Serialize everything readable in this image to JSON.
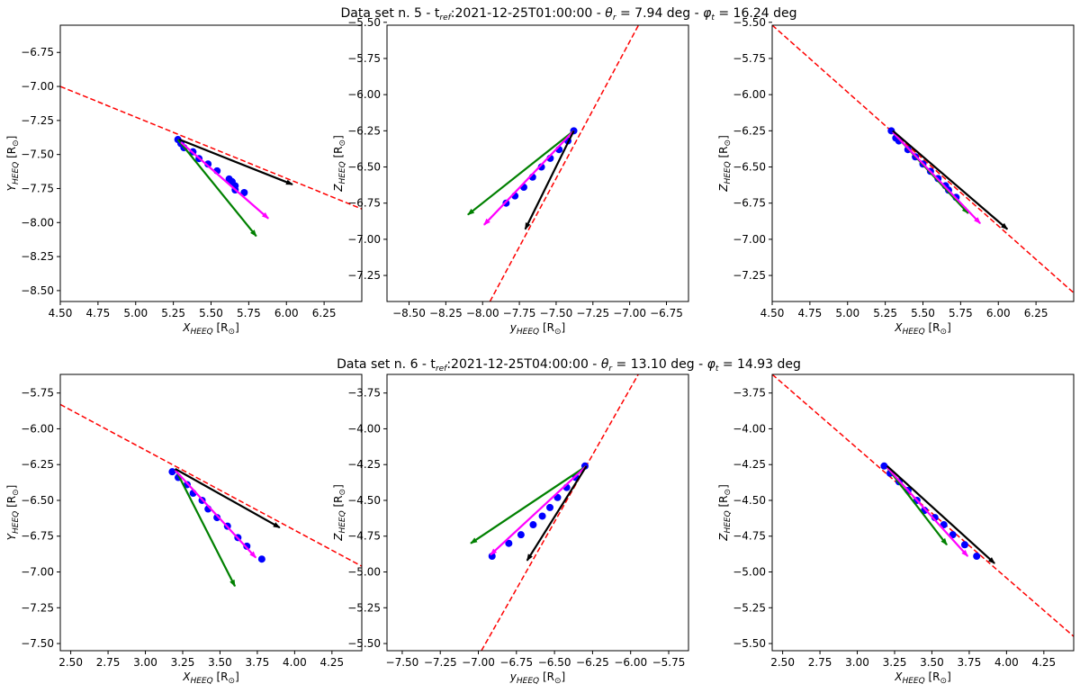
{
  "figure": {
    "row_titles": [
      "Data set n. 5 - t_ref:2021-12-25T01:00:00 - θ_r = 7.94 deg - φ_t = 16.24 deg",
      "Data set n. 6 - t_ref:2021-12-25T04:00:00 - θ_r = 13.10 deg - φ_t = 14.93 deg"
    ],
    "row_title_parts": [
      {
        "prefix": "Data set n. 5 - t",
        "ref": "ref",
        "date": ":2021-12-25T01:00:00 - ",
        "theta_sym": "θ",
        "theta_sub": "r",
        "theta_val": " = 7.94 deg - ",
        "phi_sym": "φ",
        "phi_sub": "t",
        "phi_val": " = 16.24 deg"
      },
      {
        "prefix": "Data set n. 6 - t",
        "ref": "ref",
        "date": ":2021-12-25T04:00:00 - ",
        "theta_sym": "θ",
        "theta_sub": "r",
        "theta_val": " = 13.10 deg - ",
        "phi_sym": "φ",
        "phi_sub": "t",
        "phi_val": " = 14.93 deg"
      }
    ],
    "colors": {
      "fit_line": "#ff0000",
      "points": "#0000ff",
      "arrow_black": "#000000",
      "arrow_magenta": "#ff00ff",
      "arrow_green": "#008000"
    }
  },
  "chart_data": [
    {
      "type": "scatter",
      "row": 0,
      "col": 0,
      "xlabel": {
        "main": "X",
        "sub": "HEEQ",
        "unit": " [R",
        "unit_sub": "⊙",
        "close": "]"
      },
      "ylabel": {
        "main": "Y",
        "sub": "HEEQ",
        "unit": " [R",
        "unit_sub": "⊙",
        "close": "]"
      },
      "xlim": [
        4.5,
        6.5
      ],
      "ylim": [
        -8.58,
        -6.55
      ],
      "xticks": [
        4.5,
        4.75,
        5.0,
        5.25,
        5.5,
        5.75,
        6.0,
        6.25
      ],
      "yticks": [
        -6.75,
        -7.0,
        -7.25,
        -7.5,
        -7.75,
        -8.0,
        -8.25,
        -8.5
      ],
      "fit_line": [
        [
          4.5,
          -7.0
        ],
        [
          6.5,
          -7.9
        ]
      ],
      "points": [
        [
          5.28,
          -7.39
        ],
        [
          5.3,
          -7.42
        ],
        [
          5.32,
          -7.45
        ],
        [
          5.38,
          -7.48
        ],
        [
          5.42,
          -7.53
        ],
        [
          5.48,
          -7.57
        ],
        [
          5.54,
          -7.62
        ],
        [
          5.62,
          -7.68
        ],
        [
          5.64,
          -7.7
        ],
        [
          5.66,
          -7.73
        ],
        [
          5.66,
          -7.76
        ],
        [
          5.72,
          -7.78
        ]
      ],
      "arrows": {
        "black": [
          [
            5.29,
            -7.39
          ],
          [
            6.04,
            -7.72
          ]
        ],
        "magenta": [
          [
            5.3,
            -7.41
          ],
          [
            5.88,
            -7.97
          ]
        ],
        "green": [
          [
            5.28,
            -7.39
          ],
          [
            5.8,
            -8.1
          ]
        ]
      }
    },
    {
      "type": "scatter",
      "row": 0,
      "col": 1,
      "xlabel": {
        "main": "y",
        "sub": "HEEQ",
        "unit": " [R",
        "unit_sub": "⊙",
        "close": "]"
      },
      "ylabel": {
        "main": "Z",
        "sub": "HEEQ",
        "unit": " [R",
        "unit_sub": "⊙",
        "close": "]"
      },
      "xlim": [
        -8.65,
        -6.6
      ],
      "ylim": [
        -7.43,
        -5.52
      ],
      "xticks": [
        -8.5,
        -8.25,
        -8.0,
        -7.75,
        -7.5,
        -7.25,
        -7.0,
        -6.75
      ],
      "yticks": [
        -5.5,
        -5.75,
        -6.0,
        -6.25,
        -6.5,
        -6.75,
        -7.0,
        -7.25
      ],
      "fit_line": [
        [
          -7.95,
          -7.43
        ],
        [
          -6.94,
          -5.52
        ]
      ],
      "points": [
        [
          -7.38,
          -6.25
        ],
        [
          -7.42,
          -6.32
        ],
        [
          -7.48,
          -6.38
        ],
        [
          -7.54,
          -6.44
        ],
        [
          -7.6,
          -6.5
        ],
        [
          -7.66,
          -6.57
        ],
        [
          -7.72,
          -6.64
        ],
        [
          -7.78,
          -6.7
        ],
        [
          -7.84,
          -6.75
        ]
      ],
      "arrows": {
        "black": [
          [
            -7.38,
            -6.25
          ],
          [
            -7.71,
            -6.93
          ]
        ],
        "magenta": [
          [
            -7.38,
            -6.25
          ],
          [
            -7.99,
            -6.9
          ]
        ],
        "green": [
          [
            -7.38,
            -6.25
          ],
          [
            -8.1,
            -6.83
          ]
        ]
      }
    },
    {
      "type": "scatter",
      "row": 0,
      "col": 2,
      "xlabel": {
        "main": "X",
        "sub": "HEEQ",
        "unit": " [R",
        "unit_sub": "⊙",
        "close": "]"
      },
      "ylabel": {
        "main": "Z",
        "sub": "HEEQ",
        "unit": " [R",
        "unit_sub": "⊙",
        "close": "]"
      },
      "xlim": [
        4.5,
        6.5
      ],
      "ylim": [
        -7.43,
        -5.52
      ],
      "xticks": [
        4.5,
        4.75,
        5.0,
        5.25,
        5.5,
        5.75,
        6.0,
        6.25
      ],
      "yticks": [
        -5.5,
        -5.75,
        -6.0,
        -6.25,
        -6.5,
        -6.75,
        -7.0,
        -7.25
      ],
      "fit_line": [
        [
          4.5,
          -5.52
        ],
        [
          6.5,
          -7.37
        ]
      ],
      "points": [
        [
          5.29,
          -6.25
        ],
        [
          5.32,
          -6.3
        ],
        [
          5.34,
          -6.32
        ],
        [
          5.4,
          -6.38
        ],
        [
          5.45,
          -6.43
        ],
        [
          5.5,
          -6.48
        ],
        [
          5.55,
          -6.53
        ],
        [
          5.6,
          -6.58
        ],
        [
          5.65,
          -6.63
        ],
        [
          5.67,
          -6.66
        ],
        [
          5.72,
          -6.71
        ]
      ],
      "arrows": {
        "black": [
          [
            5.3,
            -6.25
          ],
          [
            6.06,
            -6.93
          ]
        ],
        "magenta": [
          [
            5.3,
            -6.26
          ],
          [
            5.88,
            -6.89
          ]
        ],
        "green": [
          [
            5.3,
            -6.26
          ],
          [
            5.8,
            -6.82
          ]
        ]
      }
    },
    {
      "type": "scatter",
      "row": 1,
      "col": 0,
      "xlabel": {
        "main": "X",
        "sub": "HEEQ",
        "unit": " [R",
        "unit_sub": "⊙",
        "close": "]"
      },
      "ylabel": {
        "main": "Y",
        "sub": "HEEQ",
        "unit": " [R",
        "unit_sub": "⊙",
        "close": "]"
      },
      "xlim": [
        2.43,
        4.45
      ],
      "ylim": [
        -7.55,
        -5.62
      ],
      "xticks": [
        2.5,
        2.75,
        3.0,
        3.25,
        3.5,
        3.75,
        4.0,
        4.25
      ],
      "yticks": [
        -5.75,
        -6.0,
        -6.25,
        -6.5,
        -6.75,
        -7.0,
        -7.25,
        -7.5
      ],
      "fit_line": [
        [
          2.43,
          -5.83
        ],
        [
          4.45,
          -6.96
        ]
      ],
      "points": [
        [
          3.18,
          -6.3
        ],
        [
          3.22,
          -6.34
        ],
        [
          3.28,
          -6.39
        ],
        [
          3.32,
          -6.45
        ],
        [
          3.38,
          -6.5
        ],
        [
          3.42,
          -6.56
        ],
        [
          3.48,
          -6.62
        ],
        [
          3.55,
          -6.68
        ],
        [
          3.62,
          -6.76
        ],
        [
          3.68,
          -6.82
        ],
        [
          3.78,
          -6.91
        ]
      ],
      "arrows": {
        "black": [
          [
            3.2,
            -6.28
          ],
          [
            3.9,
            -6.69
          ]
        ],
        "magenta": [
          [
            3.2,
            -6.29
          ],
          [
            3.74,
            -6.9
          ]
        ],
        "green": [
          [
            3.2,
            -6.28
          ],
          [
            3.6,
            -7.1
          ]
        ]
      }
    },
    {
      "type": "scatter",
      "row": 1,
      "col": 1,
      "xlabel": {
        "main": "y",
        "sub": "HEEQ",
        "unit": " [R",
        "unit_sub": "⊙",
        "close": "]"
      },
      "ylabel": {
        "main": "Z",
        "sub": "HEEQ",
        "unit": " [R",
        "unit_sub": "⊙",
        "close": "]"
      },
      "xlim": [
        -7.6,
        -5.62
      ],
      "ylim": [
        -5.55,
        -3.62
      ],
      "xticks": [
        -7.5,
        -7.25,
        -7.0,
        -6.75,
        -6.5,
        -6.25,
        -6.0,
        -5.75
      ],
      "yticks": [
        -3.75,
        -4.0,
        -4.25,
        -4.5,
        -4.75,
        -5.0,
        -5.25,
        -5.5
      ],
      "fit_line": [
        [
          -6.98,
          -5.55
        ],
        [
          -5.95,
          -3.62
        ]
      ],
      "points": [
        [
          -6.3,
          -4.26
        ],
        [
          -6.36,
          -4.34
        ],
        [
          -6.42,
          -4.41
        ],
        [
          -6.48,
          -4.48
        ],
        [
          -6.53,
          -4.55
        ],
        [
          -6.58,
          -4.61
        ],
        [
          -6.64,
          -4.67
        ],
        [
          -6.72,
          -4.74
        ],
        [
          -6.8,
          -4.8
        ],
        [
          -6.91,
          -4.89
        ]
      ],
      "arrows": {
        "black": [
          [
            -6.29,
            -4.26
          ],
          [
            -6.68,
            -4.92
          ]
        ],
        "magenta": [
          [
            -6.29,
            -4.26
          ],
          [
            -6.92,
            -4.88
          ]
        ],
        "green": [
          [
            -6.29,
            -4.26
          ],
          [
            -7.05,
            -4.8
          ]
        ]
      }
    },
    {
      "type": "scatter",
      "row": 1,
      "col": 2,
      "xlabel": {
        "main": "X",
        "sub": "HEEQ",
        "unit": " [R",
        "unit_sub": "⊙",
        "close": "]"
      },
      "ylabel": {
        "main": "Z",
        "sub": "HEEQ",
        "unit": " [R",
        "unit_sub": "⊙",
        "close": "]"
      },
      "xlim": [
        2.43,
        4.45
      ],
      "ylim": [
        -5.55,
        -3.62
      ],
      "xticks": [
        2.5,
        2.75,
        3.0,
        3.25,
        3.5,
        3.75,
        4.0,
        4.25
      ],
      "yticks": [
        -3.75,
        -4.0,
        -4.25,
        -4.5,
        -4.75,
        -5.0,
        -5.25,
        -5.5
      ],
      "fit_line": [
        [
          2.43,
          -3.62
        ],
        [
          4.45,
          -5.45
        ]
      ],
      "points": [
        [
          3.18,
          -4.26
        ],
        [
          3.22,
          -4.31
        ],
        [
          3.28,
          -4.37
        ],
        [
          3.34,
          -4.43
        ],
        [
          3.4,
          -4.5
        ],
        [
          3.45,
          -4.57
        ],
        [
          3.52,
          -4.62
        ],
        [
          3.58,
          -4.67
        ],
        [
          3.64,
          -4.74
        ],
        [
          3.72,
          -4.81
        ],
        [
          3.8,
          -4.89
        ]
      ],
      "arrows": {
        "black": [
          [
            3.2,
            -4.26
          ],
          [
            3.92,
            -4.94
          ]
        ],
        "magenta": [
          [
            3.2,
            -4.27
          ],
          [
            3.74,
            -4.89
          ]
        ],
        "green": [
          [
            3.2,
            -4.27
          ],
          [
            3.6,
            -4.81
          ]
        ]
      }
    }
  ]
}
